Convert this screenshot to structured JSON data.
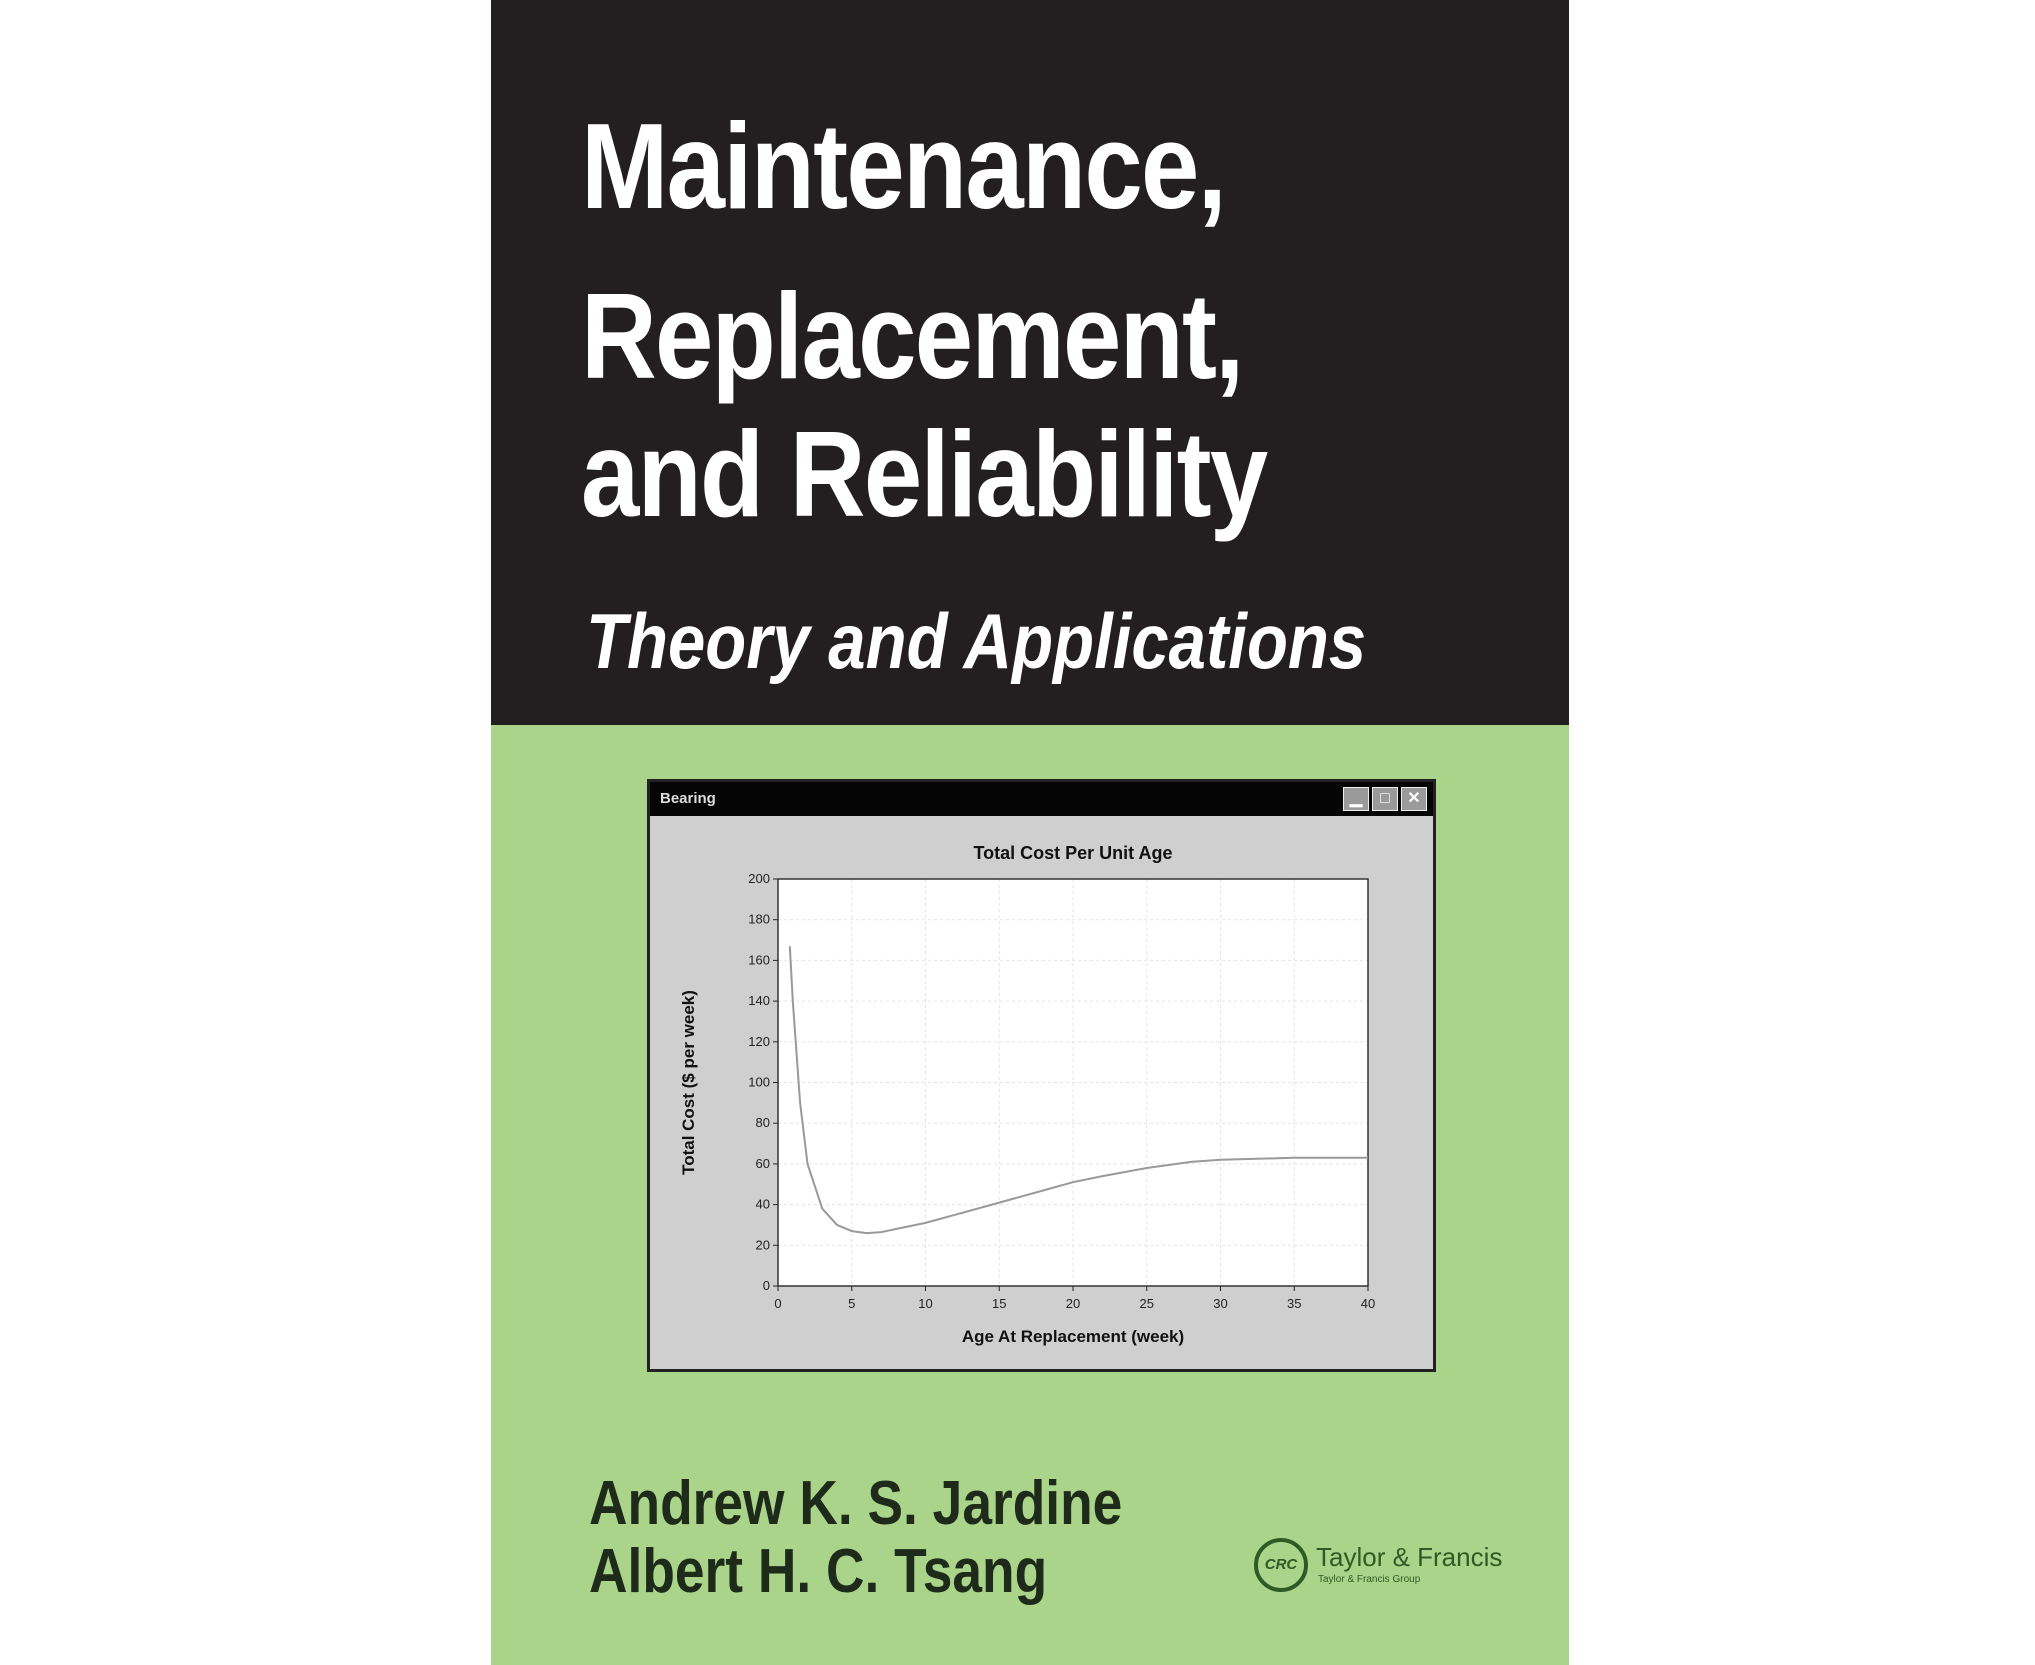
{
  "cover": {
    "title_lines": [
      "Maintenance,",
      "Replacement,",
      "and Reliability"
    ],
    "subtitle": "Theory and Applications",
    "authors": [
      "Andrew K. S. Jardine",
      "Albert H. C. Tsang"
    ],
    "publisher": {
      "logo_text": "CRC",
      "name": "Taylor & Francis",
      "group": "Taylor & Francis Group"
    },
    "colors": {
      "top": "#231f20",
      "bottom": "#a9d48a"
    }
  },
  "window": {
    "title": "Bearing",
    "buttons": {
      "minimize": "▁",
      "maximize": "□",
      "close": "✕"
    }
  },
  "chart_data": {
    "type": "line",
    "title": "Total Cost Per Unit Age",
    "xlabel": "Age At Replacement (week)",
    "ylabel": "Total Cost ($ per week)",
    "xlim": [
      0,
      40
    ],
    "ylim": [
      0,
      200
    ],
    "xticks": [
      0,
      5,
      10,
      15,
      20,
      25,
      30,
      35,
      40
    ],
    "yticks": [
      0,
      20,
      40,
      60,
      80,
      100,
      120,
      140,
      160,
      180,
      200
    ],
    "grid": true,
    "x": [
      0.8,
      1,
      1.5,
      2,
      3,
      4,
      5,
      6,
      7,
      8,
      10,
      12,
      15,
      18,
      20,
      22,
      25,
      28,
      30,
      35,
      40
    ],
    "y": [
      167,
      140,
      90,
      60,
      38,
      30,
      27,
      26,
      26.5,
      28,
      31,
      35,
      41,
      47,
      51,
      54,
      58,
      61,
      62,
      63,
      63
    ]
  }
}
